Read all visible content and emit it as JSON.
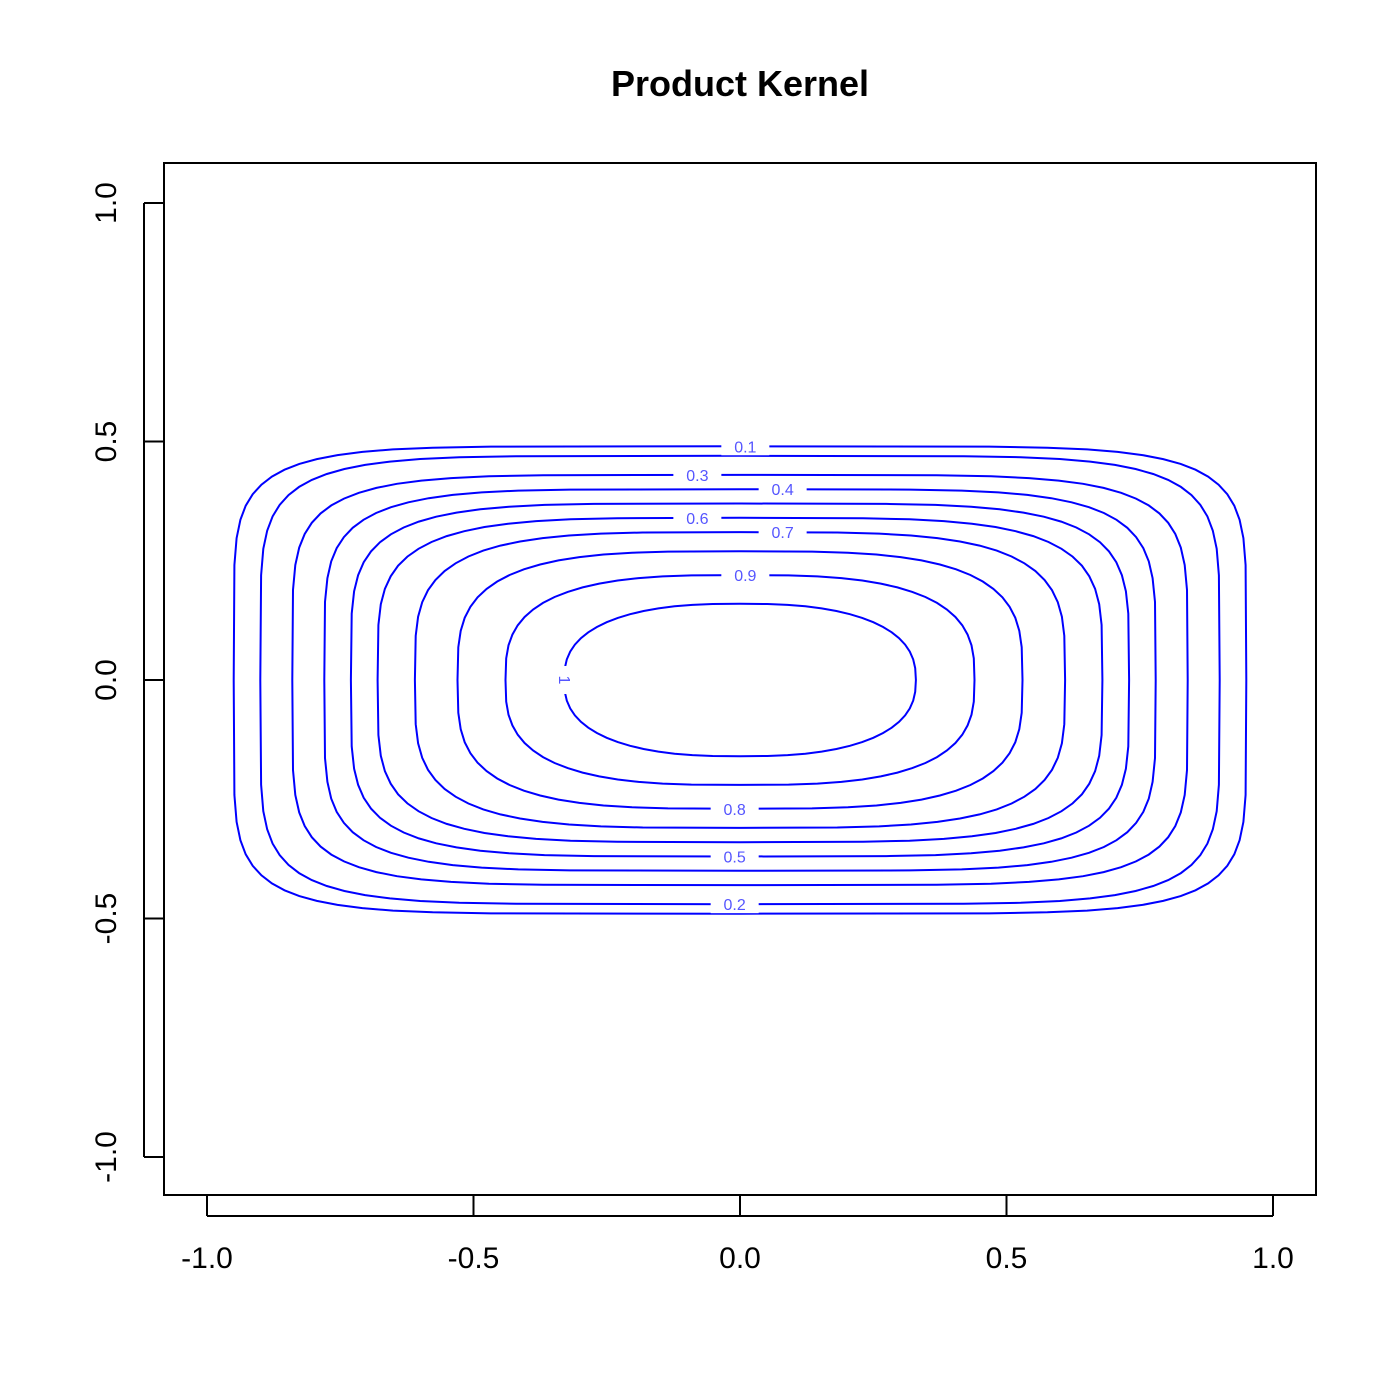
{
  "chart_data": {
    "type": "contour",
    "title": "Product Kernel",
    "xlabel": "",
    "ylabel": "",
    "xlim": [
      -1.0,
      1.0
    ],
    "ylim": [
      -1.0,
      1.0
    ],
    "x_ticks": [
      -1.0,
      -0.5,
      0.0,
      0.5,
      1.0
    ],
    "y_ticks": [
      -1.0,
      -0.5,
      0.0,
      0.5,
      1.0
    ],
    "x_tick_labels": [
      "-1.0",
      "-0.5",
      "0.0",
      "0.5",
      "1.0"
    ],
    "y_tick_labels": [
      "-1.0",
      "-0.5",
      "0.0",
      "0.5",
      "1.0"
    ],
    "line_color": "#0000ff",
    "label_color": "#5555ff",
    "levels": [
      {
        "value": 0.1,
        "label": "0.1",
        "half_width": 0.95,
        "half_height": 0.49,
        "label_x": 0.01,
        "label_y": 0.49
      },
      {
        "value": 0.2,
        "label": "0.2",
        "half_width": 0.9,
        "half_height": 0.47,
        "label_x": -0.01,
        "label_y": -0.47
      },
      {
        "value": 0.3,
        "label": "0.3",
        "half_width": 0.84,
        "half_height": 0.43,
        "label_x": -0.08,
        "label_y": 0.43
      },
      {
        "value": 0.4,
        "label": "0.4",
        "half_width": 0.78,
        "half_height": 0.4,
        "label_x": 0.08,
        "label_y": 0.4
      },
      {
        "value": 0.5,
        "label": "0.5",
        "half_width": 0.73,
        "half_height": 0.37,
        "label_x": -0.01,
        "label_y": -0.37
      },
      {
        "value": 0.6,
        "label": "0.6",
        "half_width": 0.68,
        "half_height": 0.34,
        "label_x": -0.08,
        "label_y": 0.34
      },
      {
        "value": 0.7,
        "label": "0.7",
        "half_width": 0.61,
        "half_height": 0.31,
        "label_x": 0.08,
        "label_y": 0.31
      },
      {
        "value": 0.8,
        "label": "0.8",
        "half_width": 0.53,
        "half_height": 0.27,
        "label_x": -0.01,
        "label_y": -0.27
      },
      {
        "value": 0.9,
        "label": "0.9",
        "half_width": 0.44,
        "half_height": 0.22,
        "label_x": 0.01,
        "label_y": 0.22
      },
      {
        "value": 1.0,
        "label": "1",
        "half_width": 0.33,
        "half_height": 0.16,
        "label_x": -0.33,
        "label_y": 0.0
      }
    ]
  }
}
